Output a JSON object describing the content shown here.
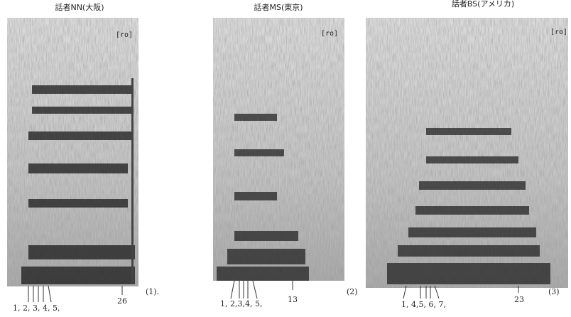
{
  "panels": [
    {
      "title": "話者NN(大阪)",
      "phoneme": "[ro]",
      "harmonics": "1, 2, 3, 4, 5,",
      "marker": "26",
      "label": "(1)."
    },
    {
      "title": "話者MS(東京)",
      "phoneme": "[ro]",
      "harmonics": "1, 2,3,4, 5,",
      "marker": "13",
      "label": "(2)"
    },
    {
      "title": "話者BS(アメリカ)",
      "phoneme": "[ro]",
      "harmonics": "1,  4,5,  6,  7,",
      "marker": "23",
      "label": "(3)"
    }
  ]
}
